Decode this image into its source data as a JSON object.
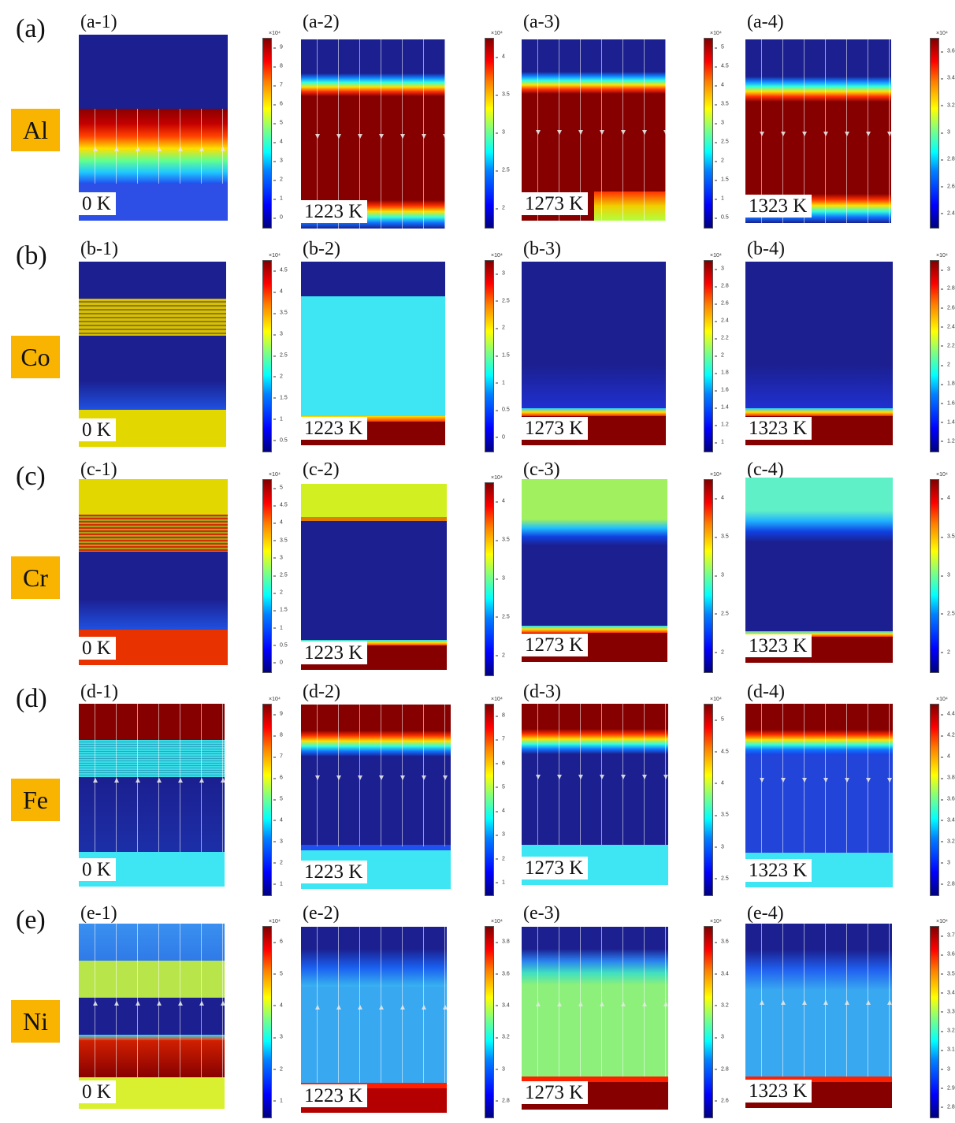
{
  "figure": {
    "rows": [
      {
        "letter": "(a)",
        "element": "Al",
        "panels": [
          {
            "label": "(a-1)",
            "temp": "0 K",
            "cbar": {
              "exponent": "×10⁴",
              "ticks": [
                "0",
                "1",
                "2",
                "3",
                "4",
                "5",
                "6",
                "7",
                "8",
                "9"
              ]
            }
          },
          {
            "label": "(a-2)",
            "temp": "1223 K",
            "cbar": {
              "exponent": "×10⁴",
              "ticks": [
                "2",
                "2.5",
                "3",
                "3.5",
                "4"
              ]
            }
          },
          {
            "label": "(a-3)",
            "temp": "1273 K",
            "cbar": {
              "exponent": "×10⁴",
              "ticks": [
                "0.5",
                "1",
                "1.5",
                "2",
                "2.5",
                "3",
                "3.5",
                "4",
                "4.5",
                "5"
              ]
            }
          },
          {
            "label": "(a-4)",
            "temp": "1323 K",
            "cbar": {
              "exponent": "×10⁴",
              "ticks": [
                "2.4",
                "2.6",
                "2.8",
                "3",
                "3.2",
                "3.4",
                "3.6"
              ]
            }
          }
        ]
      },
      {
        "letter": "(b)",
        "element": "Co",
        "panels": [
          {
            "label": "(b-1)",
            "temp": "0 K",
            "cbar": {
              "exponent": "×10⁴",
              "ticks": [
                "0.5",
                "1",
                "1.5",
                "2",
                "2.5",
                "3",
                "3.5",
                "4",
                "4.5"
              ]
            }
          },
          {
            "label": "(b-2)",
            "temp": "1223 K",
            "cbar": {
              "exponent": "×10⁴",
              "ticks": [
                "0",
                "0.5",
                "1",
                "1.5",
                "2",
                "2.5",
                "3"
              ]
            }
          },
          {
            "label": "(b-3)",
            "temp": "1273 K",
            "cbar": {
              "exponent": "×10⁴",
              "ticks": [
                "1",
                "1.2",
                "1.4",
                "1.6",
                "1.8",
                "2",
                "2.2",
                "2.4",
                "2.6",
                "2.8",
                "3"
              ]
            }
          },
          {
            "label": "(b-4)",
            "temp": "1323 K",
            "cbar": {
              "exponent": "×10⁴",
              "ticks": [
                "1.2",
                "1.4",
                "1.6",
                "1.8",
                "2",
                "2.2",
                "2.4",
                "2.6",
                "2.8",
                "3"
              ]
            }
          }
        ]
      },
      {
        "letter": "(c)",
        "element": "Cr",
        "panels": [
          {
            "label": "(c-1)",
            "temp": "0 K",
            "cbar": {
              "exponent": "×10⁴",
              "ticks": [
                "0",
                "0.5",
                "1",
                "1.5",
                "2",
                "2.5",
                "3",
                "3.5",
                "4",
                "4.5",
                "5"
              ]
            }
          },
          {
            "label": "(c-2)",
            "temp": "1223 K",
            "cbar": {
              "exponent": "×10⁴",
              "ticks": [
                "2",
                "2.5",
                "3",
                "3.5",
                "4"
              ]
            }
          },
          {
            "label": "(c-3)",
            "temp": "1273 K",
            "cbar": {
              "exponent": "×10⁴",
              "ticks": [
                "2",
                "2.5",
                "3",
                "3.5",
                "4"
              ]
            }
          },
          {
            "label": "(c-4)",
            "temp": "1323 K",
            "cbar": {
              "exponent": "×10⁴",
              "ticks": [
                "2",
                "2.5",
                "3",
                "3.5",
                "4"
              ]
            }
          }
        ]
      },
      {
        "letter": "(d)",
        "element": "Fe",
        "panels": [
          {
            "label": "(d-1)",
            "temp": "0 K",
            "cbar": {
              "exponent": "×10⁴",
              "ticks": [
                "1",
                "2",
                "3",
                "4",
                "5",
                "6",
                "7",
                "8",
                "9"
              ]
            }
          },
          {
            "label": "(d-2)",
            "temp": "1223 K",
            "cbar": {
              "exponent": "×10⁴",
              "ticks": [
                "1",
                "2",
                "3",
                "4",
                "5",
                "6",
                "7",
                "8"
              ]
            }
          },
          {
            "label": "(d-3)",
            "temp": "1273 K",
            "cbar": {
              "exponent": "×10⁴",
              "ticks": [
                "2.5",
                "3",
                "3.5",
                "4",
                "4.5",
                "5"
              ]
            }
          },
          {
            "label": "(d-4)",
            "temp": "1323 K",
            "cbar": {
              "exponent": "×10⁴",
              "ticks": [
                "2.8",
                "3",
                "3.2",
                "3.4",
                "3.6",
                "3.8",
                "4",
                "4.2",
                "4.4"
              ]
            }
          }
        ]
      },
      {
        "letter": "(e)",
        "element": "Ni",
        "panels": [
          {
            "label": "(e-1)",
            "temp": "0 K",
            "cbar": {
              "exponent": "×10⁴",
              "ticks": [
                "1",
                "2",
                "3",
                "4",
                "5",
                "6"
              ]
            }
          },
          {
            "label": "(e-2)",
            "temp": "1223 K",
            "cbar": {
              "exponent": "×10⁴",
              "ticks": [
                "2.8",
                "3",
                "3.2",
                "3.4",
                "3.6",
                "3.8"
              ]
            }
          },
          {
            "label": "(e-3)",
            "temp": "1273 K",
            "cbar": {
              "exponent": "×10⁴",
              "ticks": [
                "2.6",
                "2.8",
                "3",
                "3.2",
                "3.4",
                "3.6"
              ]
            }
          },
          {
            "label": "(e-4)",
            "temp": "1323 K",
            "cbar": {
              "exponent": "×10⁴",
              "ticks": [
                "2.8",
                "2.9",
                "3",
                "3.1",
                "3.2",
                "3.3",
                "3.4",
                "3.5",
                "3.6",
                "3.7"
              ]
            }
          }
        ]
      }
    ]
  },
  "colors": {
    "badge": "#f8b400",
    "navy": "#1a1a8c",
    "red": "#8b0000",
    "cyan": "#3ce8f0",
    "yellow": "#e6d800",
    "lime": "#c8f030"
  }
}
